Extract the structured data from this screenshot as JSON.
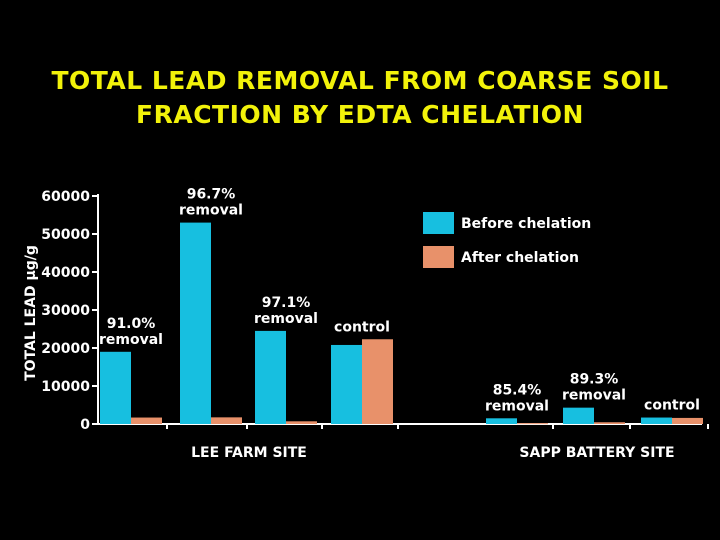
{
  "title_lines": [
    "TOTAL LEAD REMOVAL FROM COARSE SOIL",
    "FRACTION BY EDTA CHELATION"
  ],
  "colors": {
    "background": "#000000",
    "title": "#f2f20a",
    "before": "#17bfe0",
    "after": "#e8916a",
    "text": "#ffffff"
  },
  "chart_data": {
    "type": "bar",
    "ylabel": "TOTAL LEAD µg/g",
    "xlabel": "",
    "ylim": [
      0,
      60000
    ],
    "yticks": [
      0,
      10000,
      20000,
      30000,
      40000,
      50000,
      60000
    ],
    "grid": false,
    "legend_position": "top-right",
    "series": [
      {
        "name": "Before chelation",
        "color": "#17bfe0"
      },
      {
        "name": "After chelation",
        "color": "#e8916a"
      }
    ],
    "groups": [
      {
        "site": "LEE FARM SITE",
        "samples": [
          {
            "annotation": [
              "91.0%",
              "removal"
            ],
            "before": 19000,
            "after": 1700
          },
          {
            "annotation": [
              "96.7%",
              "removal"
            ],
            "before": 53000,
            "after": 1750
          },
          {
            "annotation": [
              "97.1%",
              "removal"
            ],
            "before": 24500,
            "after": 710
          },
          {
            "annotation": [
              "control"
            ],
            "before": 20800,
            "after": 22300
          }
        ]
      },
      {
        "site": "SAPP  BATTERY SITE",
        "samples": [
          {
            "annotation": [
              "85.4%",
              "removal"
            ],
            "before": 1500,
            "after": 220
          },
          {
            "annotation": [
              "89.3%",
              "removal"
            ],
            "before": 4300,
            "after": 460
          },
          {
            "annotation": [
              "control"
            ],
            "before": 1700,
            "after": 1600
          }
        ]
      }
    ]
  }
}
